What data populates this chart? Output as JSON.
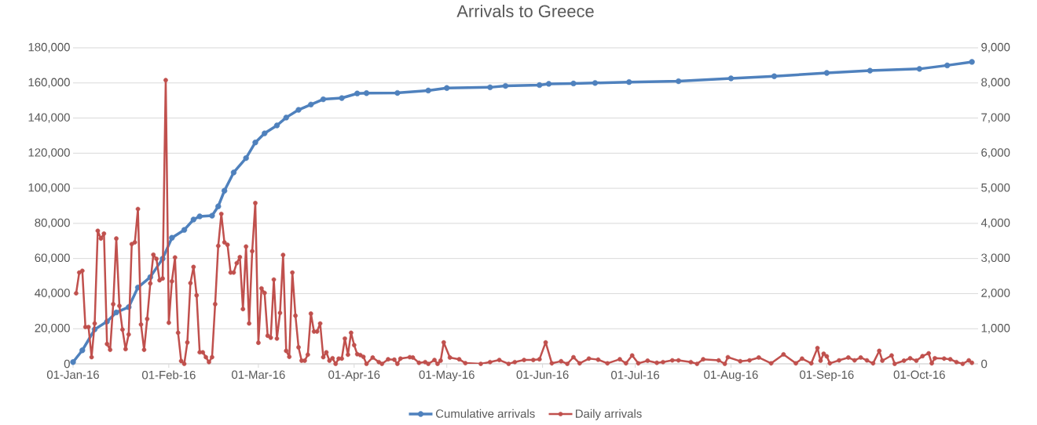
{
  "chart_data": {
    "type": "line",
    "title": "Arrivals to Greece",
    "xlim": [
      "2016-01-01",
      "2016-10-20"
    ],
    "xticks": [
      {
        "value": "2016-01-01",
        "label": "01-Jan-16"
      },
      {
        "value": "2016-02-01",
        "label": "01-Feb-16"
      },
      {
        "value": "2016-03-01",
        "label": "01-Mar-16"
      },
      {
        "value": "2016-04-01",
        "label": "01-Apr-16"
      },
      {
        "value": "2016-05-01",
        "label": "01-May-16"
      },
      {
        "value": "2016-06-01",
        "label": "01-Jun-16"
      },
      {
        "value": "2016-07-01",
        "label": "01-Jul-16"
      },
      {
        "value": "2016-08-01",
        "label": "01-Aug-16"
      },
      {
        "value": "2016-09-01",
        "label": "01-Sep-16"
      },
      {
        "value": "2016-10-01",
        "label": "01-Oct-16"
      }
    ],
    "ylim": [
      0,
      180000
    ],
    "yticks": [
      0,
      {
        "value": 20000,
        "label": "20,000"
      },
      {
        "value": 40000,
        "label": "40,000"
      },
      {
        "value": 60000,
        "label": "60,000"
      },
      {
        "value": 80000,
        "label": "80,000"
      },
      {
        "value": 100000,
        "label": "100,000"
      },
      {
        "value": 120000,
        "label": "120,000"
      },
      {
        "value": 140000,
        "label": "140,000"
      },
      {
        "value": 160000,
        "label": "160,000"
      },
      {
        "value": 180000,
        "label": "180,000"
      }
    ],
    "y2lim": [
      0,
      9000
    ],
    "y2ticks": [
      0,
      {
        "value": 1000,
        "label": "1,000"
      },
      {
        "value": 2000,
        "label": "2,000"
      },
      {
        "value": 3000,
        "label": "3,000"
      },
      {
        "value": 4000,
        "label": "4,000"
      },
      {
        "value": 5000,
        "label": "5,000"
      },
      {
        "value": 6000,
        "label": "6,000"
      },
      {
        "value": 7000,
        "label": "7,000"
      },
      {
        "value": 8000,
        "label": "8,000"
      },
      {
        "value": 9000,
        "label": "9,000"
      }
    ],
    "grid": "y",
    "legend": "bottom",
    "marker": "circle",
    "series": [
      {
        "name": "Cumulative arrivals",
        "color": "#4f81bd",
        "x": [
          "2016-01-01",
          "2016-01-04",
          "2016-01-08",
          "2016-01-12",
          "2016-01-15",
          "2016-01-19",
          "2016-01-22",
          "2016-01-26",
          "2016-01-30",
          "2016-02-02",
          "2016-02-06",
          "2016-02-09",
          "2016-02-11",
          "2016-02-15",
          "2016-02-17",
          "2016-02-19",
          "2016-02-22",
          "2016-02-26",
          "2016-02-29",
          "2016-03-03",
          "2016-03-07",
          "2016-03-10",
          "2016-03-14",
          "2016-03-18",
          "2016-03-22",
          "2016-03-28",
          "2016-04-02",
          "2016-04-05",
          "2016-04-15",
          "2016-04-25",
          "2016-05-01",
          "2016-05-15",
          "2016-05-20",
          "2016-05-31",
          "2016-06-03",
          "2016-06-11",
          "2016-06-18",
          "2016-06-29",
          "2016-07-15",
          "2016-08-01",
          "2016-08-15",
          "2016-09-01",
          "2016-09-15",
          "2016-10-01",
          "2016-10-10",
          "2016-10-18"
        ],
        "values": [
          1000,
          7700,
          19600,
          24100,
          29300,
          32300,
          43500,
          49400,
          59900,
          71800,
          76300,
          82200,
          84000,
          84400,
          89700,
          98600,
          109000,
          117200,
          126100,
          131300,
          135800,
          140300,
          144700,
          147700,
          150700,
          151400,
          154000,
          154200,
          154300,
          155700,
          157100,
          157500,
          158300,
          158800,
          159500,
          159700,
          160000,
          160500,
          161000,
          162600,
          163800,
          165700,
          167000,
          168000,
          170000,
          172000
        ]
      },
      {
        "name": "Daily arrivals",
        "color": "#c0504d",
        "axis": "y2",
        "x": [
          "2016-01-02",
          "2016-01-03",
          "2016-01-04",
          "2016-01-05",
          "2016-01-06",
          "2016-01-07",
          "2016-01-08",
          "2016-01-09",
          "2016-01-10",
          "2016-01-11",
          "2016-01-12",
          "2016-01-13",
          "2016-01-14",
          "2016-01-15",
          "2016-01-16",
          "2016-01-17",
          "2016-01-18",
          "2016-01-19",
          "2016-01-20",
          "2016-01-21",
          "2016-01-22",
          "2016-01-23",
          "2016-01-24",
          "2016-01-25",
          "2016-01-26",
          "2016-01-27",
          "2016-01-28",
          "2016-01-29",
          "2016-01-30",
          "2016-01-31",
          "2016-02-01",
          "2016-02-02",
          "2016-02-03",
          "2016-02-04",
          "2016-02-05",
          "2016-02-06",
          "2016-02-07",
          "2016-02-08",
          "2016-02-09",
          "2016-02-10",
          "2016-02-11",
          "2016-02-12",
          "2016-02-13",
          "2016-02-14",
          "2016-02-15",
          "2016-02-16",
          "2016-02-17",
          "2016-02-18",
          "2016-02-19",
          "2016-02-20",
          "2016-02-21",
          "2016-02-22",
          "2016-02-23",
          "2016-02-24",
          "2016-02-25",
          "2016-02-26",
          "2016-02-27",
          "2016-02-28",
          "2016-02-29",
          "2016-03-01",
          "2016-03-02",
          "2016-03-03",
          "2016-03-04",
          "2016-03-05",
          "2016-03-06",
          "2016-03-07",
          "2016-03-08",
          "2016-03-09",
          "2016-03-10",
          "2016-03-11",
          "2016-03-12",
          "2016-03-13",
          "2016-03-14",
          "2016-03-15",
          "2016-03-16",
          "2016-03-17",
          "2016-03-18",
          "2016-03-19",
          "2016-03-20",
          "2016-03-21",
          "2016-03-22",
          "2016-03-23",
          "2016-03-24",
          "2016-03-25",
          "2016-03-26",
          "2016-03-27",
          "2016-03-28",
          "2016-03-29",
          "2016-03-30",
          "2016-03-31",
          "2016-04-01",
          "2016-04-02",
          "2016-04-03",
          "2016-04-04",
          "2016-04-05",
          "2016-04-07",
          "2016-04-09",
          "2016-04-10",
          "2016-04-12",
          "2016-04-14",
          "2016-04-15",
          "2016-04-16",
          "2016-04-19",
          "2016-04-20",
          "2016-04-22",
          "2016-04-24",
          "2016-04-25",
          "2016-04-27",
          "2016-04-28",
          "2016-04-29",
          "2016-04-30",
          "2016-05-02",
          "2016-05-05",
          "2016-05-07",
          "2016-05-12",
          "2016-05-15",
          "2016-05-18",
          "2016-05-21",
          "2016-05-23",
          "2016-05-26",
          "2016-05-29",
          "2016-05-31",
          "2016-06-02",
          "2016-06-04",
          "2016-06-07",
          "2016-06-09",
          "2016-06-11",
          "2016-06-13",
          "2016-06-16",
          "2016-06-19",
          "2016-06-22",
          "2016-06-26",
          "2016-06-28",
          "2016-06-30",
          "2016-07-02",
          "2016-07-05",
          "2016-07-08",
          "2016-07-10",
          "2016-07-13",
          "2016-07-15",
          "2016-07-19",
          "2016-07-21",
          "2016-07-23",
          "2016-07-28",
          "2016-07-30",
          "2016-07-31",
          "2016-08-04",
          "2016-08-07",
          "2016-08-10",
          "2016-08-14",
          "2016-08-18",
          "2016-08-22",
          "2016-08-24",
          "2016-08-27",
          "2016-08-29",
          "2016-08-30",
          "2016-08-31",
          "2016-09-01",
          "2016-09-02",
          "2016-09-05",
          "2016-09-08",
          "2016-09-10",
          "2016-09-12",
          "2016-09-14",
          "2016-09-16",
          "2016-09-18",
          "2016-09-19",
          "2016-09-22",
          "2016-09-23",
          "2016-09-26",
          "2016-09-28",
          "2016-09-30",
          "2016-10-02",
          "2016-10-04",
          "2016-10-05",
          "2016-10-06",
          "2016-10-09",
          "2016-10-11",
          "2016-10-13",
          "2016-10-15",
          "2016-10-17",
          "2016-10-18"
        ],
        "values": [
          2010,
          2600,
          2650,
          1050,
          1050,
          190,
          1150,
          3790,
          3570,
          3710,
          565,
          400,
          1700,
          3570,
          1650,
          975,
          420,
          835,
          3410,
          3460,
          4410,
          1120,
          400,
          1280,
          2290,
          3110,
          2990,
          2380,
          2430,
          8080,
          1170,
          2350,
          3030,
          885,
          80,
          0,
          610,
          2300,
          2760,
          1950,
          330,
          330,
          190,
          50,
          190,
          1700,
          3360,
          4270,
          3460,
          3390,
          2600,
          2600,
          2870,
          3040,
          1560,
          3340,
          1150,
          3210,
          4580,
          600,
          2150,
          2020,
          800,
          745,
          2400,
          720,
          1450,
          3100,
          370,
          200,
          2600,
          1370,
          470,
          90,
          90,
          260,
          1430,
          920,
          920,
          1150,
          190,
          330,
          90,
          160,
          0,
          150,
          150,
          720,
          260,
          885,
          535,
          275,
          250,
          200,
          0,
          180,
          50,
          0,
          130,
          120,
          0,
          150,
          190,
          180,
          30,
          50,
          0,
          110,
          0,
          90,
          610,
          180,
          130,
          20,
          0,
          50,
          110,
          0,
          50,
          110,
          110,
          130,
          610,
          15,
          75,
          0,
          190,
          15,
          150,
          120,
          15,
          130,
          15,
          240,
          15,
          90,
          30,
          50,
          100,
          100,
          50,
          0,
          130,
          100,
          0,
          190,
          75,
          100,
          180,
          15,
          270,
          15,
          150,
          15,
          450,
          90,
          290,
          215,
          15,
          100,
          180,
          100,
          180,
          100,
          15,
          370,
          90,
          240,
          0,
          90,
          160,
          90,
          220,
          300,
          15,
          160,
          150,
          130,
          50,
          0,
          100,
          30
        ]
      }
    ]
  }
}
